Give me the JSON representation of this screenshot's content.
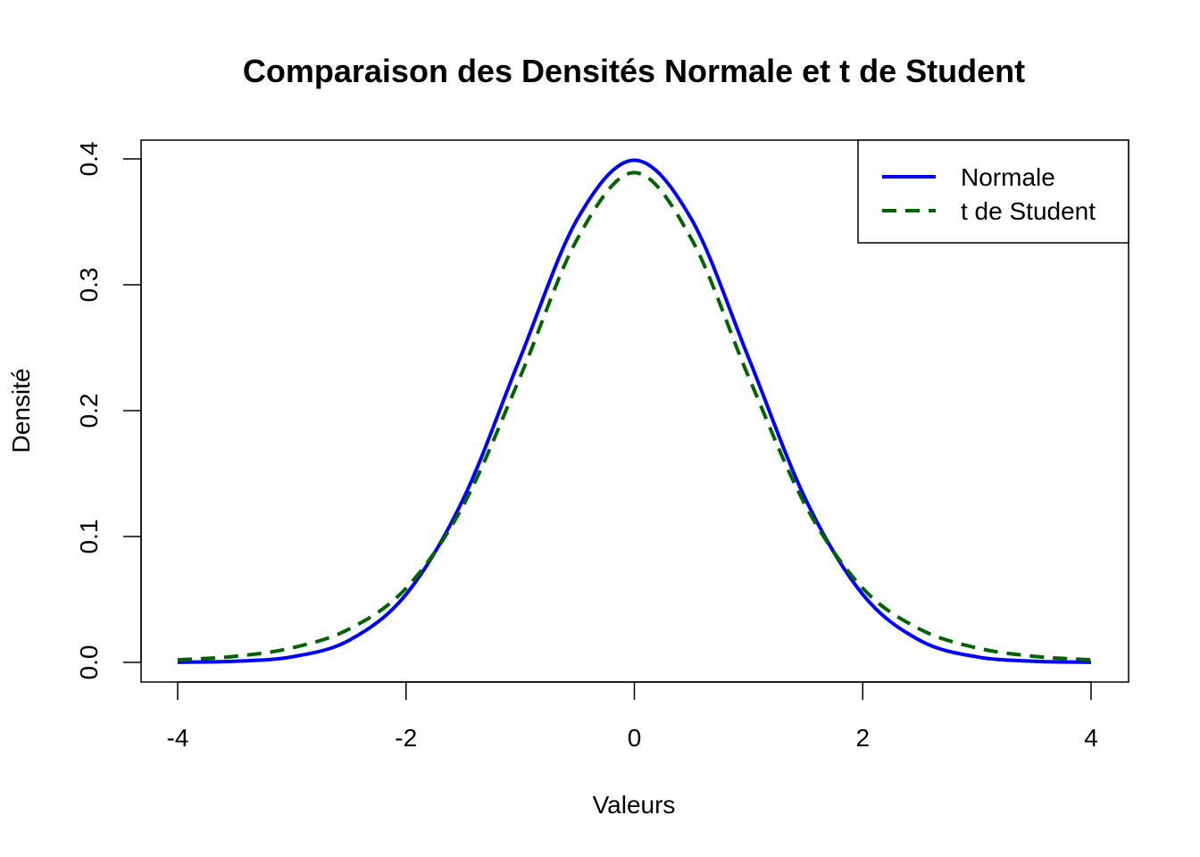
{
  "chart_data": {
    "type": "line",
    "title": "Comparaison des Densités Normale et t de Student",
    "xlabel": "Valeurs",
    "ylabel": "Densité",
    "xlim": [
      -4,
      4
    ],
    "ylim": [
      0,
      0.4
    ],
    "x_ticks": [
      "-4",
      "-2",
      "0",
      "2",
      "4"
    ],
    "y_ticks": [
      "0.0",
      "0.1",
      "0.2",
      "0.3",
      "0.4"
    ],
    "grid": false,
    "legend_position": "top-right",
    "x": [
      -4,
      -3.5,
      -3,
      -2.5,
      -2,
      -1.5,
      -1,
      -0.5,
      0,
      0.5,
      1,
      1.5,
      2,
      2.5,
      3,
      3.5,
      4
    ],
    "series": [
      {
        "name": "Normale",
        "color": "#0000ff",
        "style": "solid",
        "values": [
          0.0001,
          0.0009,
          0.0044,
          0.0175,
          0.054,
          0.1295,
          0.242,
          0.3521,
          0.3989,
          0.3521,
          0.242,
          0.1295,
          0.054,
          0.0175,
          0.0044,
          0.0009,
          0.0001
        ]
      },
      {
        "name": "t de Student",
        "color": "#006400",
        "style": "dashed",
        "values": [
          0.002,
          0.0048,
          0.0115,
          0.0264,
          0.0589,
          0.1245,
          0.2269,
          0.3364,
          0.3891,
          0.3364,
          0.2269,
          0.1245,
          0.0589,
          0.0264,
          0.0115,
          0.0048,
          0.002
        ]
      }
    ]
  }
}
